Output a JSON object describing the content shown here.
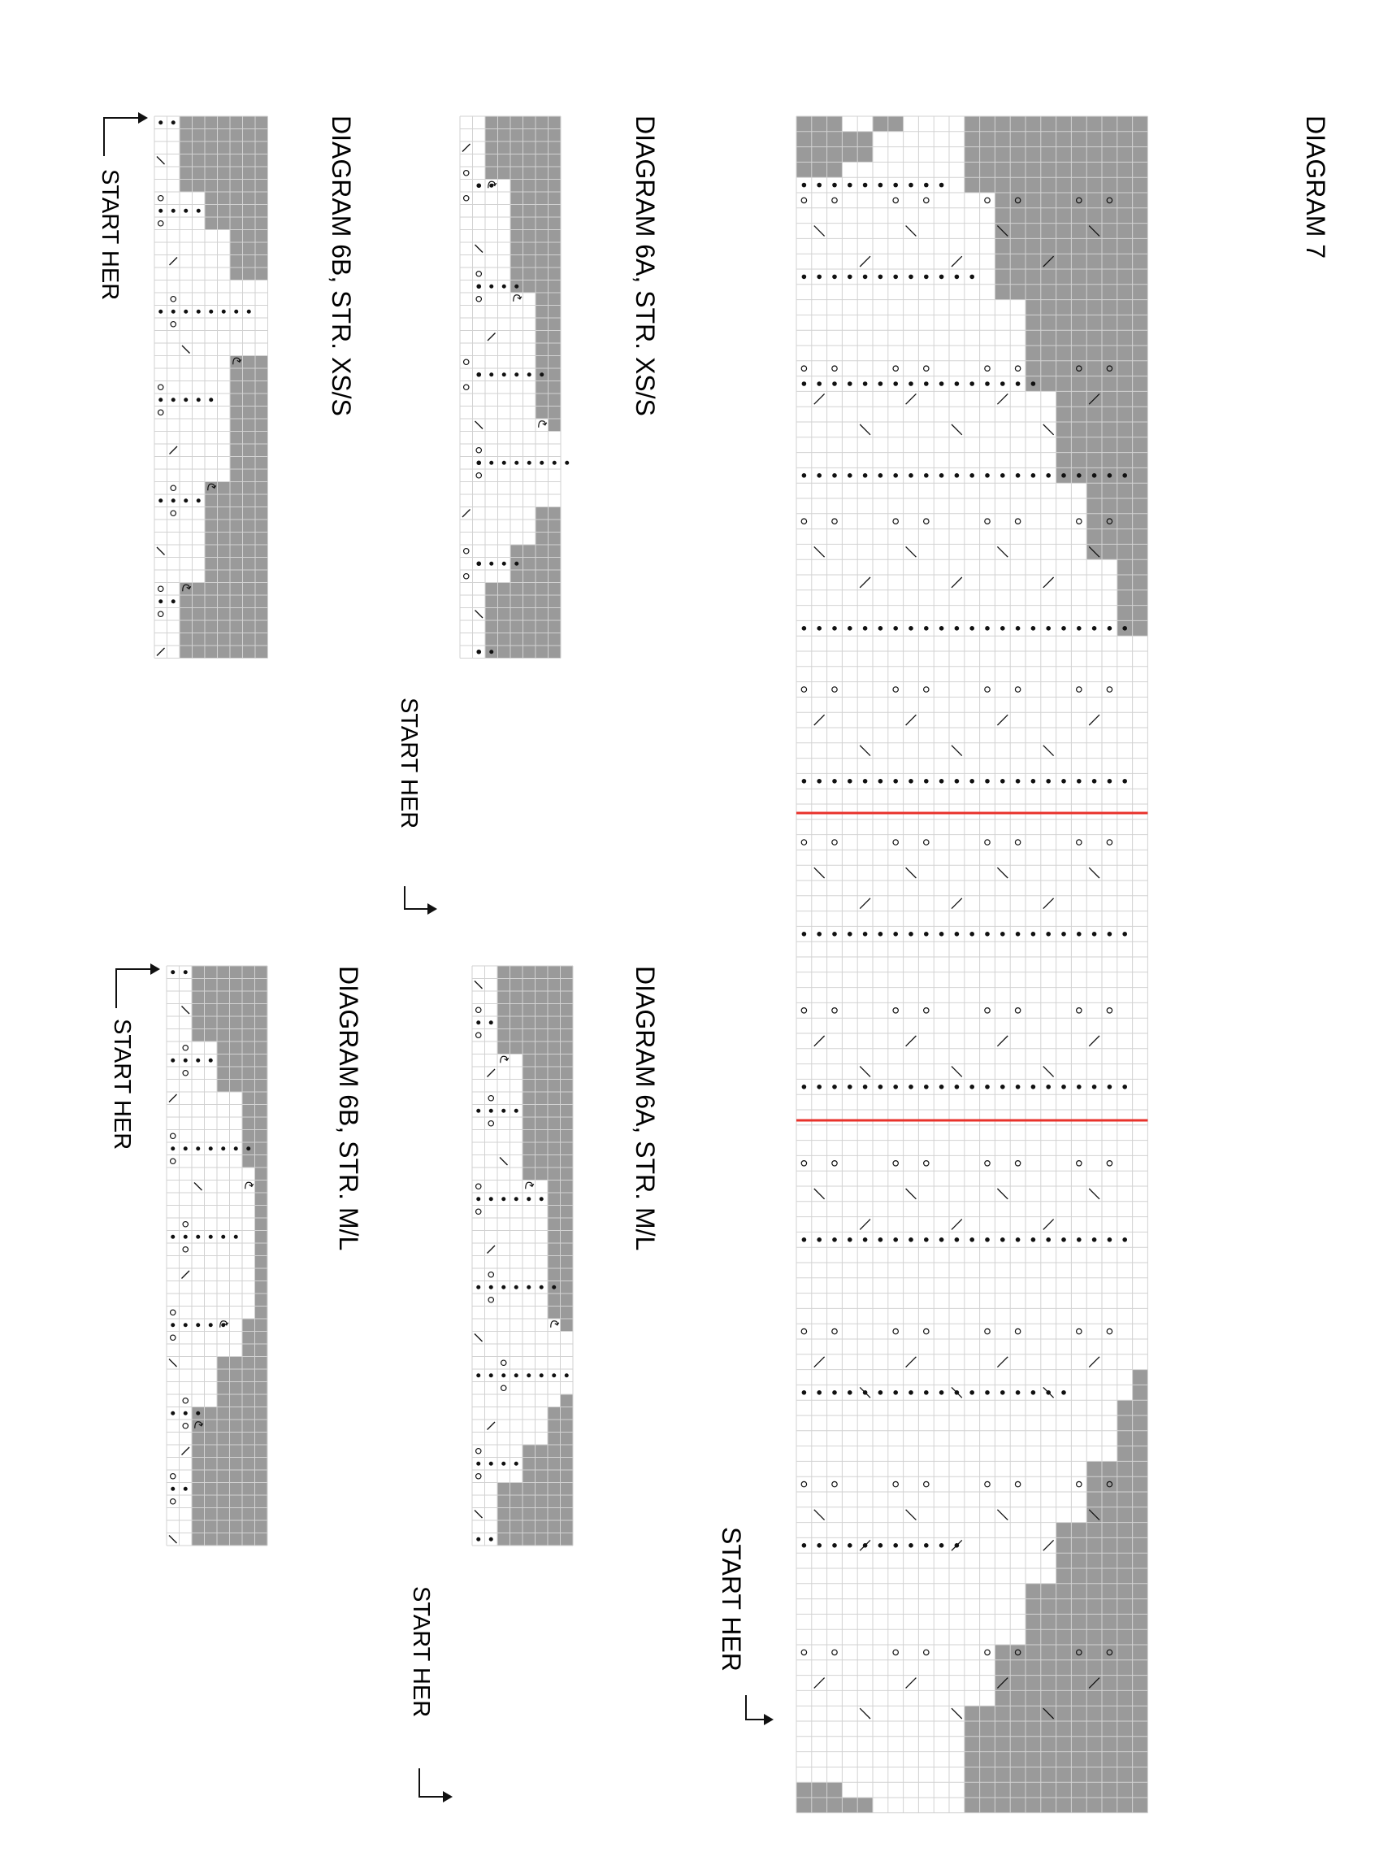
{
  "diagrams": [
    {
      "id": "d7",
      "title": "DIAGRAM 7",
      "start": "START HER"
    },
    {
      "id": "d6a_xs",
      "title": "DIAGRAM 6A, STR. XS/S",
      "start": "START HER"
    },
    {
      "id": "d6b_xs",
      "title": "DIAGRAM 6B, STR. XS/S",
      "start": "START HER"
    },
    {
      "id": "d6a_ml",
      "title": "DIAGRAM 6A, STR. M/L",
      "start": "START HER"
    },
    {
      "id": "d6b_ml",
      "title": "DIAGRAM 6B, STR. M/L",
      "start": "START HER"
    }
  ],
  "colors": {
    "shaded": "#9a9a9a",
    "grid": "#d2d2d2",
    "marker": "#e8322b",
    "ink": "#111111"
  },
  "symbols": [
    "purl-dot-icon",
    "yarn-over-icon",
    "k2tog-slash-icon",
    "ssk-slash-icon",
    "increase-loop-icon",
    "decrease-arrow-icon",
    "direction-arrow-icon"
  ]
}
